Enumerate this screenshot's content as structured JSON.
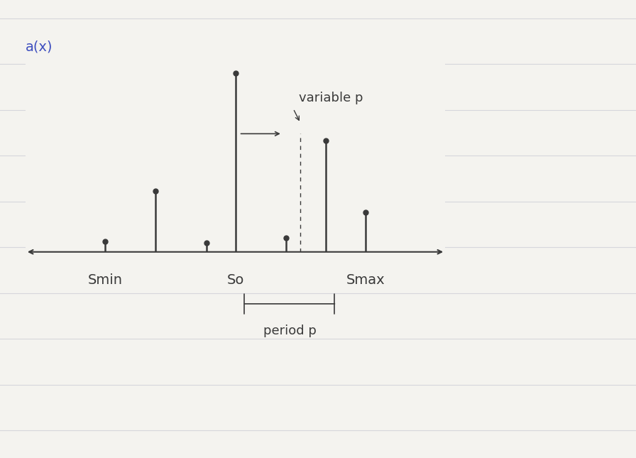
{
  "chart_data": {
    "type": "stem",
    "title": "a(x)",
    "x": [
      -3.6,
      -2.2,
      -0.8,
      0,
      1.4,
      2.5,
      3.6
    ],
    "values": [
      0.6,
      3.4,
      0.5,
      10,
      0.8,
      6.2,
      2.2
    ],
    "xlim": [
      -5.8,
      5.8
    ],
    "ylim": [
      0,
      11
    ],
    "xticks": [
      {
        "value": -3.6,
        "label": "Smin"
      },
      {
        "value": 0,
        "label": "So"
      },
      {
        "value": 3.6,
        "label": "Smax"
      }
    ],
    "yticks": [],
    "tick_labels": "x",
    "color": "#3a3a3a",
    "marker": "o",
    "annotations": [
      "variable p",
      "period p"
    ]
  }
}
